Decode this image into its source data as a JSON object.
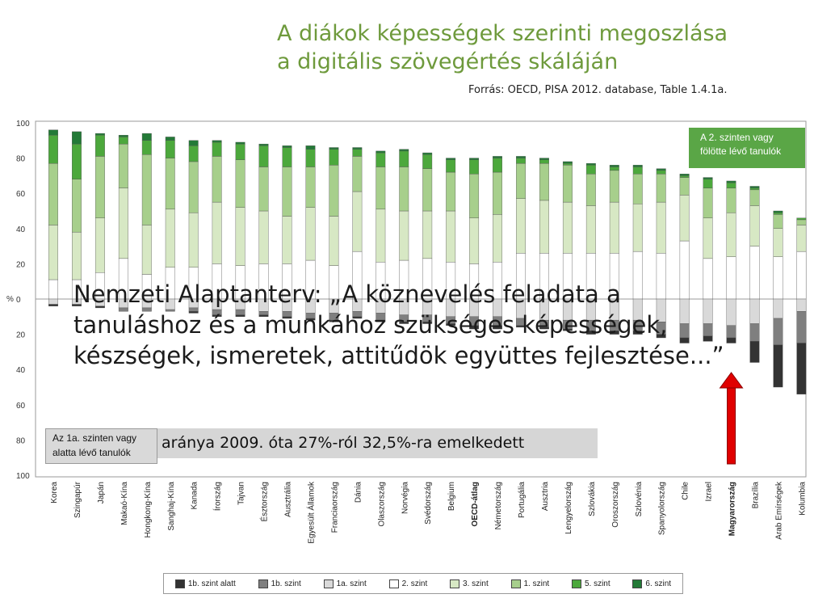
{
  "slide": {
    "title_line1": "A diákok képességek szerinti megoszlása",
    "title_line2": "a digitális szövegértés skáláján",
    "source": "Forrás: OECD, PISA 2012. database, Table 1.4.1a.",
    "quote": "Nemzeti Alaptanterv: „A köznevelés feladata a tanuláshoz és a munkához szükséges képességek, készségek, ismeretek, attitűdök együttes fejlesztése...”",
    "band_text": "aránya 2009. óta 27%-ról 32,5%-ra emelkedett",
    "box_top_line1": "A 2. szinten vagy",
    "box_top_line2": "fölötte lévő tanulók",
    "box_bottom_line1": "Az 1a. szinten vagy",
    "box_bottom_line2": "alatta lévő tanulók"
  },
  "chart_data": {
    "type": "bar",
    "subtype": "diverging-stacked",
    "ylabel": "%",
    "ylim": [
      -100,
      100
    ],
    "yticks": [
      100,
      80,
      60,
      40,
      20,
      0,
      20,
      40,
      60,
      80,
      100
    ],
    "highlight_category": "Magyarország",
    "categories": [
      "Korea",
      "Szingapúr",
      "Japán",
      "Makaó-Kína",
      "Hongkong-Kína",
      "Sanghaj-Kína",
      "Kanada",
      "Írország",
      "Tajvan",
      "Észtország",
      "Ausztrália",
      "Egyesült Államok",
      "Franciaország",
      "Dánia",
      "Olaszország",
      "Norvégia",
      "Svédország",
      "Belgium",
      "OECD-átlag",
      "Németország",
      "Portugália",
      "Ausztria",
      "Lengyelország",
      "Szlovákia",
      "Oroszország",
      "Szlovénia",
      "Spanyolország",
      "Chile",
      "Izrael",
      "Magyarország",
      "Brazília",
      "Arab Emírségek",
      "Kolumbia"
    ],
    "legend": [
      {
        "name": "1b. szint alatt",
        "color": "#333333"
      },
      {
        "name": "1b. szint",
        "color": "#7f7f7f"
      },
      {
        "name": "1a. szint",
        "color": "#d9d9d9"
      },
      {
        "name": "2. szint",
        "color": "#ffffff"
      },
      {
        "name": "3. szint",
        "color": "#d7e8c4"
      },
      {
        "name": "1. szint",
        "color": "#a7cf8c"
      },
      {
        "name": "5. szint",
        "color": "#4ca83c"
      },
      {
        "name": "6. szint",
        "color": "#237a37"
      }
    ],
    "series_above": [
      {
        "name": "2. szint",
        "values": [
          11,
          11,
          15,
          23,
          14,
          18,
          18,
          20,
          19,
          20,
          20,
          22,
          19,
          27,
          21,
          22,
          23,
          21,
          20,
          21,
          26,
          26,
          26,
          26,
          26,
          27,
          26,
          33,
          23,
          24,
          30,
          24,
          27
        ]
      },
      {
        "name": "3. szint",
        "values": [
          31,
          27,
          31,
          40,
          28,
          33,
          31,
          35,
          33,
          30,
          27,
          30,
          28,
          34,
          30,
          28,
          27,
          29,
          26,
          27,
          31,
          30,
          29,
          27,
          29,
          27,
          29,
          26,
          23,
          25,
          23,
          16,
          15
        ]
      },
      {
        "name": "1. szint",
        "values": [
          35,
          30,
          35,
          25,
          40,
          29,
          29,
          26,
          27,
          25,
          28,
          23,
          29,
          20,
          24,
          25,
          24,
          22,
          25,
          24,
          20,
          21,
          21,
          18,
          18,
          17,
          16,
          10,
          17,
          14,
          9,
          8,
          3
        ]
      },
      {
        "name": "5. szint",
        "values": [
          16,
          20,
          12,
          4,
          8,
          10,
          9,
          8,
          9,
          12,
          11,
          10,
          9,
          4,
          8,
          9,
          8,
          7,
          8,
          8,
          3,
          2,
          1,
          5,
          2,
          4,
          2,
          1,
          5,
          3,
          1,
          1,
          1
        ]
      },
      {
        "name": "6. szint",
        "values": [
          3,
          7,
          1,
          1,
          4,
          2,
          3,
          1,
          1,
          1,
          1,
          2,
          1,
          1,
          1,
          1,
          1,
          1,
          1,
          1,
          1,
          1,
          1,
          1,
          1,
          1,
          1,
          1,
          1,
          1,
          1,
          1,
          0
        ]
      }
    ],
    "series_below": [
      {
        "name": "1a. szint",
        "values": [
          3,
          3,
          4,
          5,
          5,
          6,
          5,
          6,
          6,
          7,
          7,
          8,
          8,
          7,
          8,
          9,
          9,
          10,
          10,
          10,
          11,
          12,
          12,
          12,
          12,
          12,
          13,
          14,
          14,
          15,
          14,
          11,
          7
        ]
      },
      {
        "name": "1b. szint",
        "values": [
          0,
          0,
          0,
          2,
          2,
          1,
          2,
          3,
          3,
          2,
          3,
          3,
          4,
          3,
          4,
          4,
          4,
          4,
          5,
          5,
          4,
          4,
          5,
          6,
          6,
          6,
          7,
          8,
          7,
          7,
          10,
          15,
          18
        ]
      },
      {
        "name": "1b. szint alatt",
        "values": [
          1,
          1,
          1,
          0,
          0,
          0,
          1,
          1,
          1,
          1,
          1,
          1,
          1,
          1,
          1,
          1,
          1,
          1,
          2,
          2,
          1,
          1,
          1,
          2,
          2,
          2,
          2,
          3,
          3,
          3,
          12,
          24,
          29
        ]
      }
    ]
  }
}
